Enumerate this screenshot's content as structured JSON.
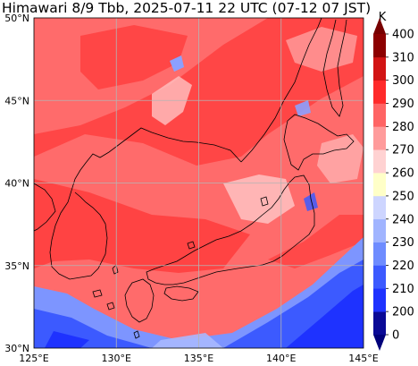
{
  "title": "Himawari 8/9 Tbb, 2025-07-11 22 UTC (07-12 07 JST)",
  "map": {
    "lon_range": [
      125,
      145
    ],
    "lat_range": [
      30,
      50
    ],
    "x_ticks": [
      "125°E",
      "130°E",
      "135°E",
      "140°E",
      "145°E"
    ],
    "y_ticks": [
      "30°N",
      "35°N",
      "40°N",
      "45°N",
      "50°N"
    ],
    "x_tick_values": [
      125,
      130,
      135,
      140,
      145
    ],
    "y_tick_values": [
      30,
      35,
      40,
      45,
      50
    ],
    "grid": true
  },
  "colorbar": {
    "unit": "K",
    "labels": [
      "0",
      "200",
      "210",
      "220",
      "230",
      "240",
      "250",
      "260",
      "270",
      "280",
      "290",
      "300",
      "310",
      "400"
    ],
    "values": [
      0,
      200,
      210,
      220,
      230,
      240,
      250,
      260,
      270,
      280,
      290,
      300,
      310,
      400
    ],
    "colors": [
      "#0a0a96",
      "#1e32ff",
      "#3c5aff",
      "#6e8cff",
      "#a0b4ff",
      "#cdd5ff",
      "#ffffc8",
      "#ffd2d2",
      "#ff9b9b",
      "#ff6464",
      "#ff2a2a",
      "#d21414",
      "#8c0000"
    ],
    "under_color": "#00007a",
    "over_color": "#780000"
  }
}
